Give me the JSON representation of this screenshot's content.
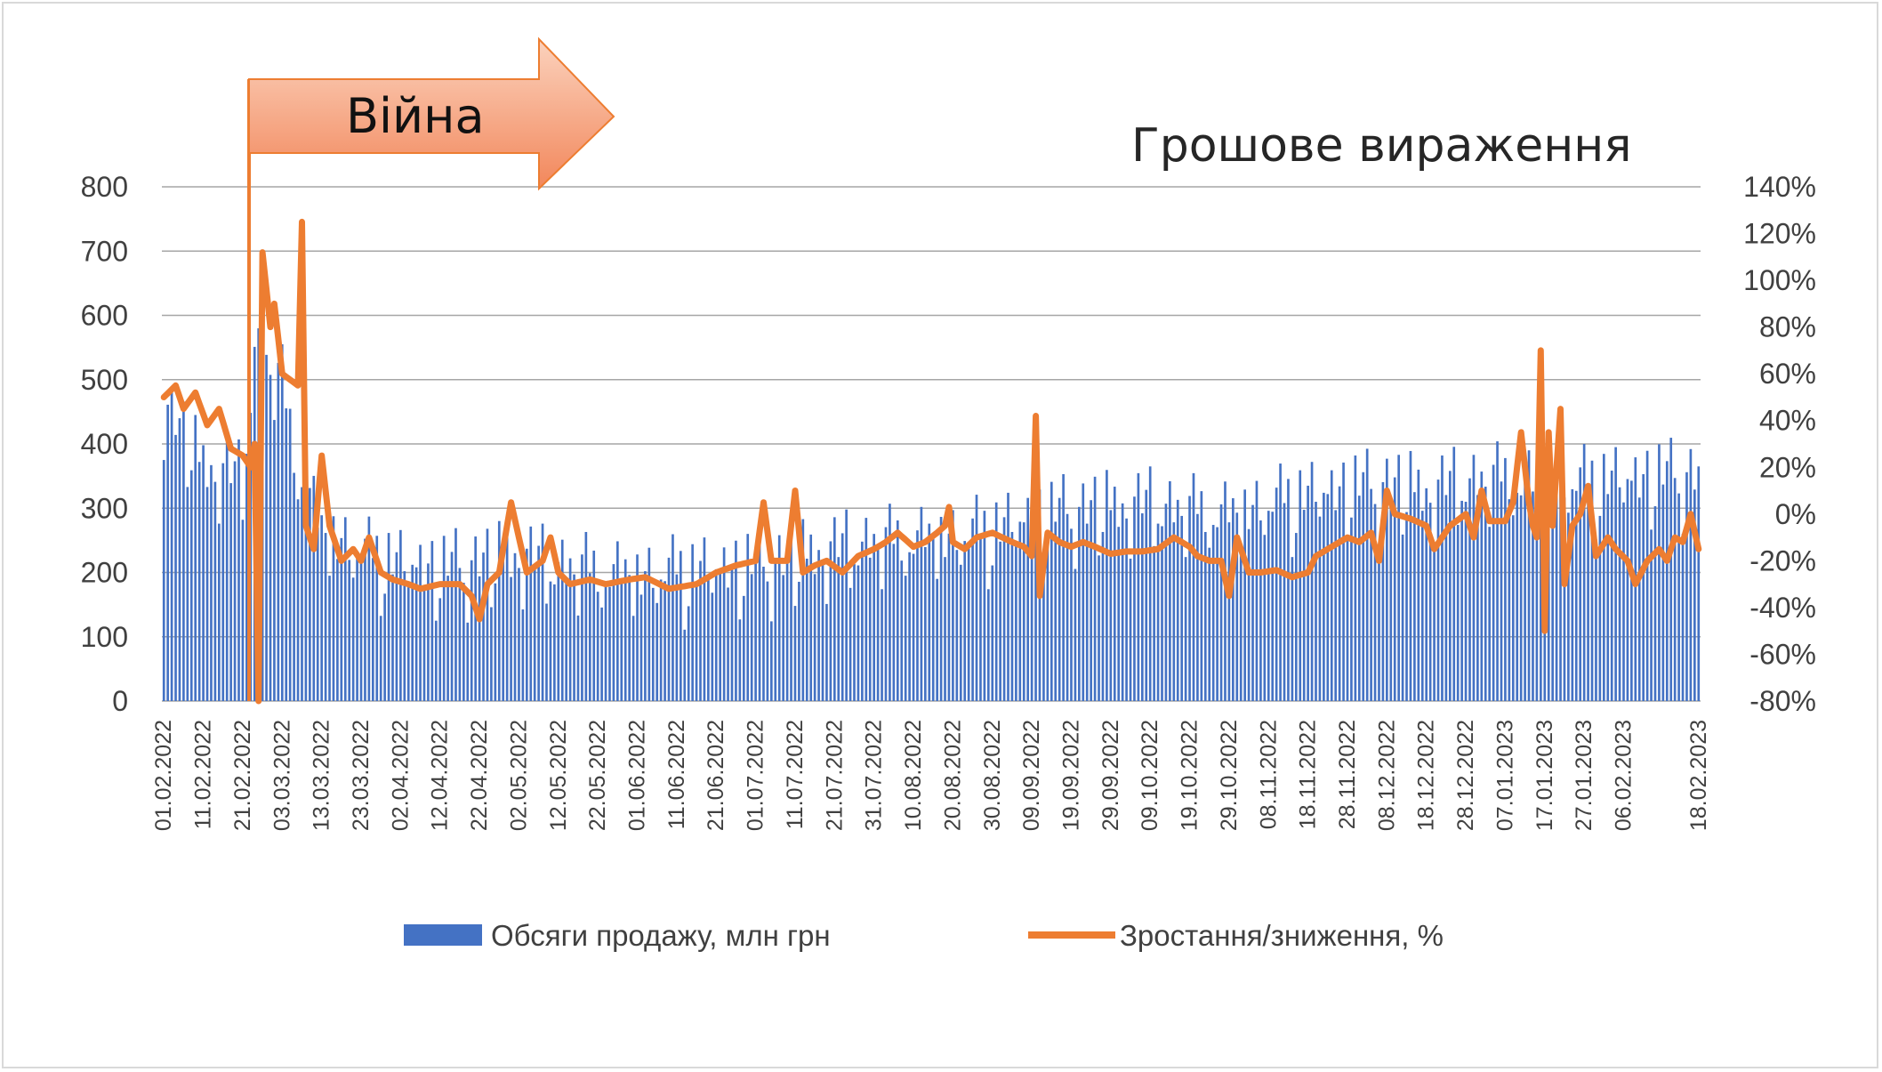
{
  "chart_data": {
    "type": "bar+line",
    "title": "Грошове вираження",
    "annotation": "Війна",
    "y_left": {
      "ticks": [
        "0",
        "100",
        "200",
        "300",
        "400",
        "500",
        "600",
        "700",
        "800"
      ],
      "ylim": [
        0,
        800
      ]
    },
    "y_right": {
      "ticks": [
        "-80%",
        "-60%",
        "-40%",
        "-20%",
        "0%",
        "20%",
        "40%",
        "60%",
        "80%",
        "100%",
        "120%",
        "140%"
      ],
      "ylim": [
        -80,
        140
      ]
    },
    "x_tick_labels": [
      "01.02.2022",
      "11.02.2022",
      "21.02.2022",
      "03.03.2022",
      "13.03.2022",
      "23.03.2022",
      "02.04.2022",
      "12.04.2022",
      "22.04.2022",
      "02.05.2022",
      "12.05.2022",
      "22.05.2022",
      "01.06.2022",
      "11.06.2022",
      "21.06.2022",
      "01.07.2022",
      "11.07.2022",
      "21.07.2022",
      "31.07.2022",
      "10.08.2022",
      "20.08.2022",
      "30.08.2022",
      "09.09.2022",
      "19.09.2022",
      "29.09.2022",
      "09.10.2022",
      "19.10.2022",
      "29.10.2022",
      "08.11.2022",
      "18.11.2022",
      "28.11.2022",
      "08.12.2022",
      "18.12.2022",
      "28.12.2022",
      "07.01.2023",
      "17.01.2023",
      "27.01.2023",
      "06.02.2023",
      "18.02.2023"
    ],
    "grid": true,
    "legend_position": "bottom",
    "series": [
      {
        "name": "Обсяги продажу, млн грн",
        "type": "bar",
        "axis": "left",
        "color": "#4472c4",
        "anchors": [
          [
            0,
            480
          ],
          [
            10,
            380
          ],
          [
            20,
            360
          ],
          [
            23,
            560
          ],
          [
            30,
            510
          ],
          [
            33,
            400
          ],
          [
            40,
            280
          ],
          [
            50,
            245
          ],
          [
            60,
            230
          ],
          [
            70,
            220
          ],
          [
            80,
            230
          ],
          [
            90,
            240
          ],
          [
            100,
            225
          ],
          [
            110,
            215
          ],
          [
            120,
            210
          ],
          [
            130,
            215
          ],
          [
            140,
            220
          ],
          [
            150,
            225
          ],
          [
            160,
            235
          ],
          [
            170,
            250
          ],
          [
            180,
            260
          ],
          [
            190,
            265
          ],
          [
            200,
            270
          ],
          [
            210,
            280
          ],
          [
            220,
            300
          ],
          [
            230,
            310
          ],
          [
            240,
            315
          ],
          [
            250,
            320
          ],
          [
            260,
            310
          ],
          [
            270,
            305
          ],
          [
            280,
            320
          ],
          [
            290,
            335
          ],
          [
            300,
            345
          ],
          [
            310,
            350
          ],
          [
            320,
            340
          ],
          [
            330,
            355
          ],
          [
            340,
            360
          ],
          [
            350,
            350
          ],
          [
            360,
            355
          ],
          [
            370,
            360
          ],
          [
            383,
            365
          ]
        ]
      },
      {
        "name": "Зростання/зниження, %",
        "type": "line",
        "axis": "right",
        "color": "#ed7d31",
        "anchors": [
          [
            0,
            50
          ],
          [
            3,
            55
          ],
          [
            5,
            45
          ],
          [
            8,
            52
          ],
          [
            11,
            38
          ],
          [
            14,
            45
          ],
          [
            17,
            28
          ],
          [
            20,
            25
          ],
          [
            22,
            20
          ],
          [
            23,
            30
          ],
          [
            24,
            -80
          ],
          [
            25,
            112
          ],
          [
            27,
            80
          ],
          [
            28,
            90
          ],
          [
            30,
            60
          ],
          [
            34,
            55
          ],
          [
            35,
            125
          ],
          [
            36,
            -5
          ],
          [
            38,
            -15
          ],
          [
            40,
            25
          ],
          [
            42,
            -5
          ],
          [
            45,
            -20
          ],
          [
            48,
            -15
          ],
          [
            50,
            -20
          ],
          [
            52,
            -10
          ],
          [
            55,
            -25
          ],
          [
            58,
            -28
          ],
          [
            62,
            -30
          ],
          [
            65,
            -32
          ],
          [
            70,
            -30
          ],
          [
            75,
            -30
          ],
          [
            78,
            -35
          ],
          [
            80,
            -45
          ],
          [
            82,
            -30
          ],
          [
            85,
            -25
          ],
          [
            88,
            5
          ],
          [
            90,
            -10
          ],
          [
            92,
            -25
          ],
          [
            96,
            -20
          ],
          [
            98,
            -10
          ],
          [
            100,
            -25
          ],
          [
            103,
            -30
          ],
          [
            108,
            -28
          ],
          [
            112,
            -30
          ],
          [
            118,
            -28
          ],
          [
            122,
            -27
          ],
          [
            128,
            -32
          ],
          [
            135,
            -30
          ],
          [
            140,
            -25
          ],
          [
            145,
            -22
          ],
          [
            150,
            -20
          ],
          [
            152,
            5
          ],
          [
            154,
            -20
          ],
          [
            158,
            -20
          ],
          [
            160,
            10
          ],
          [
            162,
            -25
          ],
          [
            165,
            -22
          ],
          [
            168,
            -20
          ],
          [
            172,
            -25
          ],
          [
            176,
            -18
          ],
          [
            180,
            -15
          ],
          [
            183,
            -12
          ],
          [
            186,
            -8
          ],
          [
            190,
            -14
          ],
          [
            193,
            -12
          ],
          [
            196,
            -8
          ],
          [
            198,
            -5
          ],
          [
            199,
            3
          ],
          [
            200,
            -12
          ],
          [
            203,
            -15
          ],
          [
            206,
            -10
          ],
          [
            210,
            -8
          ],
          [
            215,
            -12
          ],
          [
            218,
            -14
          ],
          [
            220,
            -18
          ],
          [
            221,
            42
          ],
          [
            222,
            -35
          ],
          [
            224,
            -8
          ],
          [
            227,
            -12
          ],
          [
            230,
            -14
          ],
          [
            233,
            -12
          ],
          [
            236,
            -14
          ],
          [
            240,
            -17
          ],
          [
            244,
            -16
          ],
          [
            248,
            -16
          ],
          [
            252,
            -15
          ],
          [
            256,
            -10
          ],
          [
            260,
            -14
          ],
          [
            262,
            -18
          ],
          [
            265,
            -20
          ],
          [
            268,
            -20
          ],
          [
            270,
            -35
          ],
          [
            272,
            -10
          ],
          [
            275,
            -25
          ],
          [
            278,
            -25
          ],
          [
            282,
            -24
          ],
          [
            286,
            -27
          ],
          [
            290,
            -25
          ],
          [
            292,
            -18
          ],
          [
            296,
            -14
          ],
          [
            300,
            -10
          ],
          [
            303,
            -12
          ],
          [
            306,
            -8
          ],
          [
            308,
            -20
          ],
          [
            310,
            10
          ],
          [
            312,
            0
          ],
          [
            316,
            -2
          ],
          [
            320,
            -5
          ],
          [
            322,
            -15
          ],
          [
            326,
            -5
          ],
          [
            330,
            0
          ],
          [
            332,
            -10
          ],
          [
            334,
            10
          ],
          [
            336,
            -3
          ],
          [
            340,
            -3
          ],
          [
            342,
            5
          ],
          [
            344,
            35
          ],
          [
            346,
            5
          ],
          [
            347,
            -5
          ],
          [
            348,
            -10
          ],
          [
            349,
            70
          ],
          [
            350,
            -50
          ],
          [
            351,
            35
          ],
          [
            352,
            -5
          ],
          [
            354,
            45
          ],
          [
            355,
            -30
          ],
          [
            357,
            -5
          ],
          [
            359,
            0
          ],
          [
            361,
            12
          ],
          [
            363,
            -18
          ],
          [
            366,
            -10
          ],
          [
            368,
            -15
          ],
          [
            371,
            -20
          ],
          [
            373,
            -30
          ],
          [
            376,
            -20
          ],
          [
            379,
            -15
          ],
          [
            381,
            -20
          ],
          [
            383,
            -10
          ],
          [
            385,
            -12
          ],
          [
            387,
            0
          ],
          [
            389,
            -15
          ]
        ]
      }
    ]
  }
}
